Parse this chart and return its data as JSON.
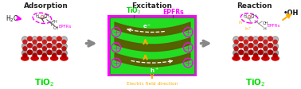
{
  "bg_color": "#ffffff",
  "panel_titles": [
    "Adsorption",
    "Excitation",
    "Reaction"
  ],
  "panel_title_color": "#222222",
  "tio2_color": "#00dd00",
  "epfrs_color": "#ff00ff",
  "arrow_gray": "#888888",
  "green_box": "#22dd22",
  "band_color": "#5a5a00",
  "band_arrow_color": "#ffaa00",
  "ef_color": "#ffaa00",
  "white": "#ffffff",
  "red_o": "#cc0000",
  "gray_ti": "#bbbbbb",
  "magenta": "#ff00ff",
  "black": "#111111",
  "figsize": [
    3.78,
    1.13
  ],
  "dpi": 100
}
